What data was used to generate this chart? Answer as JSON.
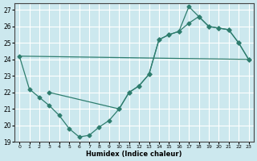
{
  "xlabel": "Humidex (Indice chaleur)",
  "bg_color": "#cce8ee",
  "line_color": "#2e7d6e",
  "grid_color": "#ffffff",
  "xlim": [
    -0.5,
    23.5
  ],
  "ylim": [
    19,
    27.4
  ],
  "yticks": [
    19,
    20,
    21,
    22,
    23,
    24,
    25,
    26,
    27
  ],
  "xticks": [
    0,
    1,
    2,
    3,
    4,
    5,
    6,
    7,
    8,
    9,
    10,
    11,
    12,
    13,
    14,
    15,
    16,
    17,
    18,
    19,
    20,
    21,
    22,
    23
  ],
  "line1_x": [
    0,
    1,
    2,
    3,
    4,
    5,
    6,
    7,
    8,
    9,
    10,
    11,
    12,
    13,
    14,
    15,
    16,
    17,
    18,
    19,
    20,
    21,
    22,
    23
  ],
  "line1_y": [
    24.2,
    22.2,
    21.7,
    21.2,
    20.6,
    19.8,
    19.3,
    19.4,
    19.9,
    20.3,
    21.0,
    22.0,
    22.4,
    23.1,
    25.2,
    25.5,
    25.7,
    26.2,
    26.6,
    26.0,
    25.9,
    25.8,
    25.0,
    24.0
  ],
  "line2_x": [
    0,
    23
  ],
  "line2_y": [
    24.2,
    24.0
  ],
  "line3_x": [
    3,
    10,
    11,
    12,
    13,
    14,
    15,
    16,
    17,
    18,
    19,
    20,
    21,
    22,
    23
  ],
  "line3_y": [
    22.0,
    21.0,
    22.0,
    22.4,
    23.1,
    25.2,
    25.5,
    25.7,
    27.2,
    26.6,
    26.0,
    25.9,
    25.8,
    25.0,
    24.0
  ]
}
